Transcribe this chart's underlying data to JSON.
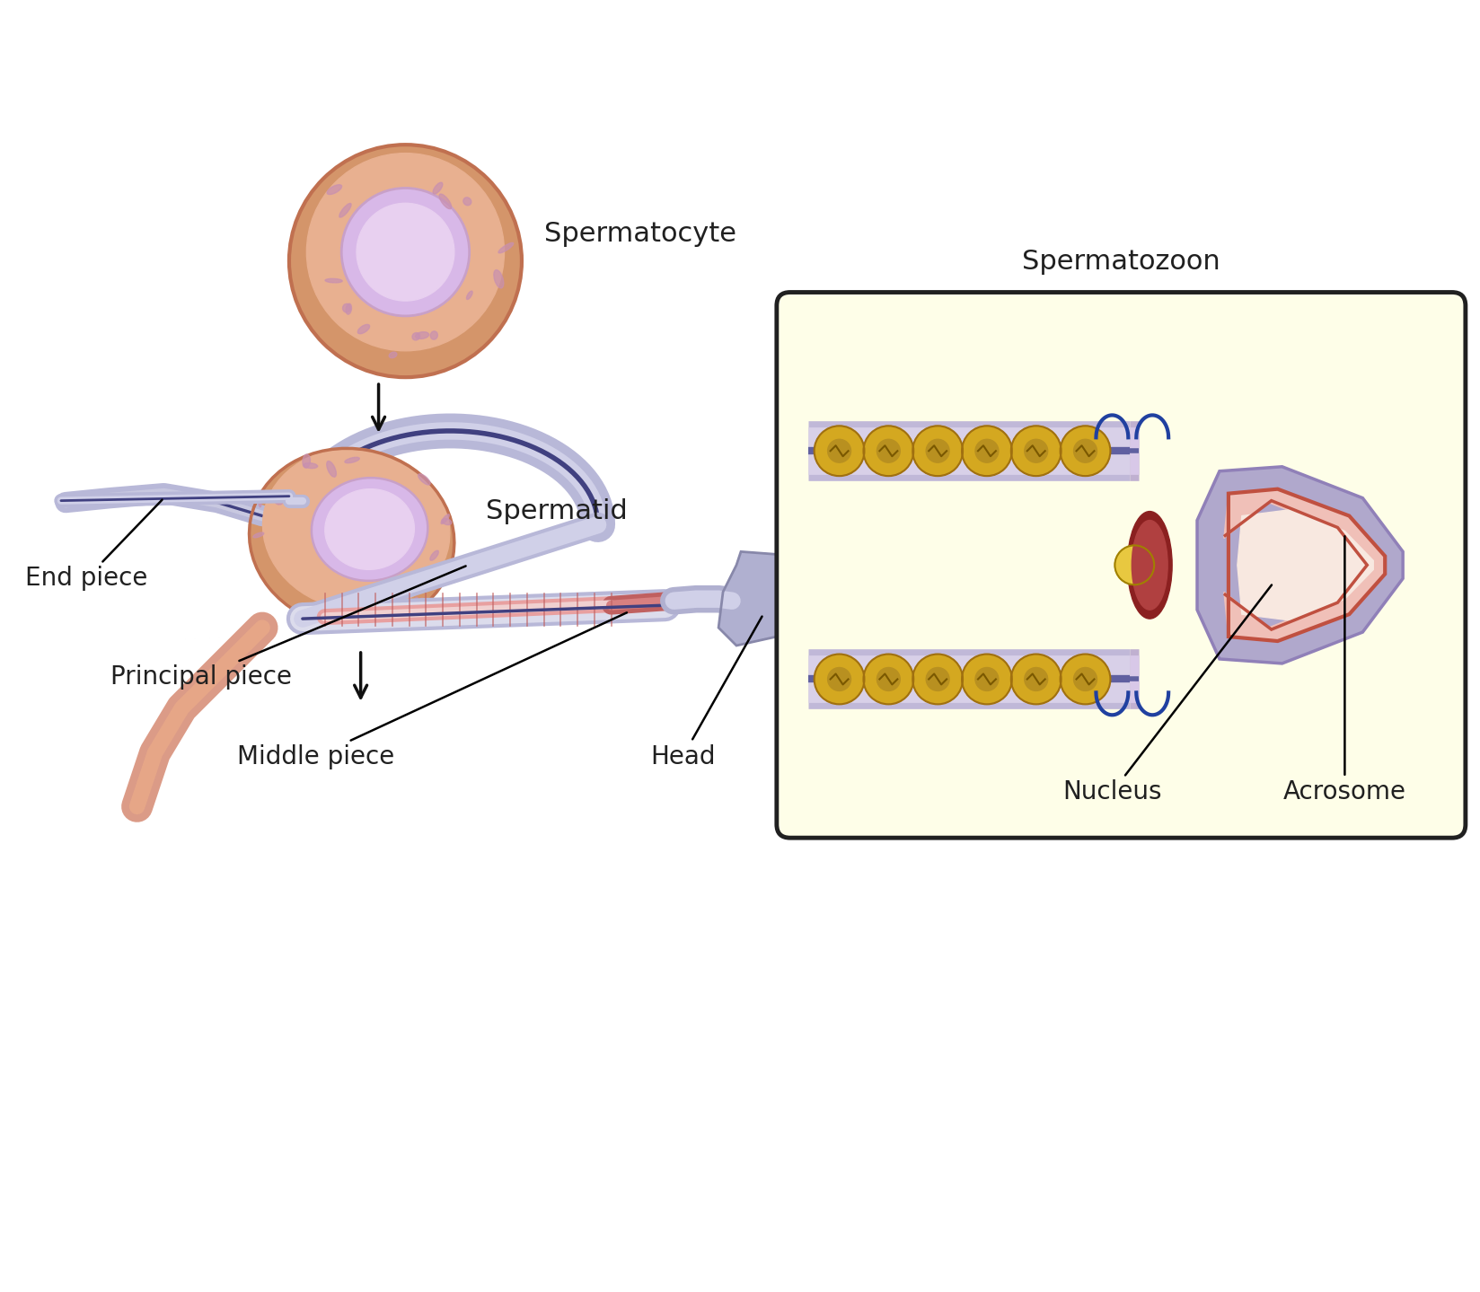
{
  "bg_color": "#ffffff",
  "figsize": [
    16.48,
    14.39
  ],
  "dpi": 100,
  "labels": {
    "spermatocyte": "Spermatocyte",
    "spermatid": "Spermatid",
    "spermatozoon": "Spermatozoon",
    "end_piece": "End piece",
    "principal_piece": "Principal piece",
    "middle_piece": "Middle piece",
    "head": "Head",
    "nucleus": "Nucleus",
    "acrosome": "Acrosome"
  },
  "colors": {
    "cell_outer": "#d4956a",
    "cell_inner": "#c68060",
    "cell_border": "#c07050",
    "nucleus_outer": "#c8a0c8",
    "nucleus_inner": "#d8b8e8",
    "nucleus_center": "#e8d0f0",
    "tail_outer": "#b8b8d8",
    "tail_inner": "#8888b8",
    "tail_dark": "#404080",
    "head_fill": "#b0b0d0",
    "head_light": "#d0d0e8",
    "middle_fill": "#e8a0a0",
    "middle_border": "#c06060",
    "acrosome_outer": "#c07878",
    "acrosome_inner": "#f0c0c0",
    "mito_fill": "#d4a820",
    "mito_border": "#a07010",
    "box_bg": "#fefee8",
    "box_border": "#202020",
    "label_color": "#202020",
    "arrow_color": "#101010"
  }
}
